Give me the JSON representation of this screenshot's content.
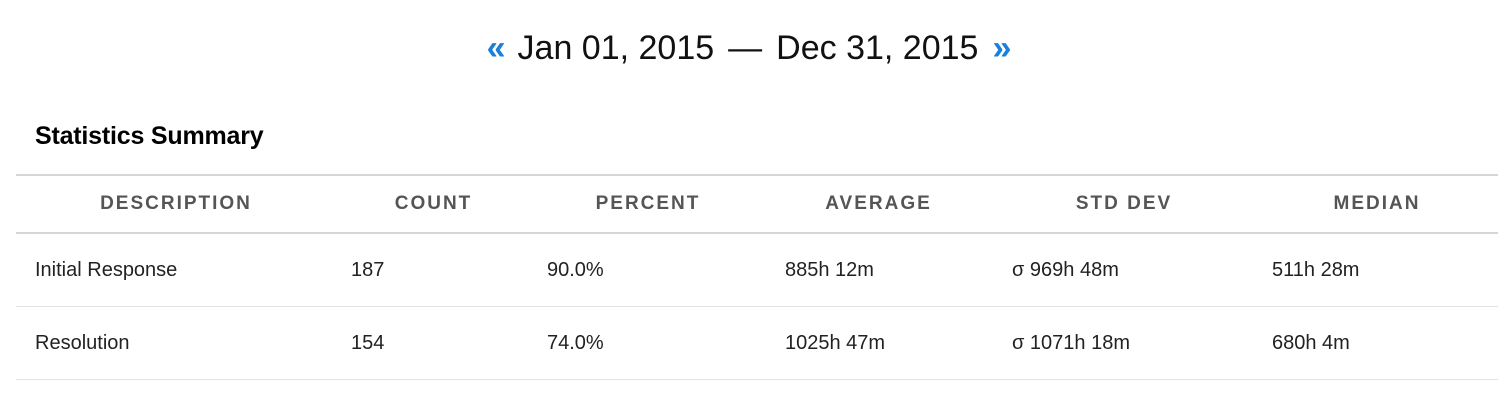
{
  "date_range": {
    "prev_label": "«",
    "start": "Jan 01, 2015",
    "separator": "—",
    "end": "Dec 31, 2015",
    "next_label": "»",
    "arrow_color": "#1a7fd9"
  },
  "summary": {
    "title": "Statistics Summary",
    "columns": [
      "DESCRIPTION",
      "COUNT",
      "PERCENT",
      "AVERAGE",
      "STD DEV",
      "MEDIAN"
    ],
    "rows": [
      {
        "description": "Initial Response",
        "count": "187",
        "percent": "90.0%",
        "average": "885h 12m",
        "std_dev": "σ 969h 48m",
        "median": "511h 28m"
      },
      {
        "description": "Resolution",
        "count": "154",
        "percent": "74.0%",
        "average": "1025h 47m",
        "std_dev": "σ 1071h 18m",
        "median": "680h 4m"
      }
    ]
  }
}
